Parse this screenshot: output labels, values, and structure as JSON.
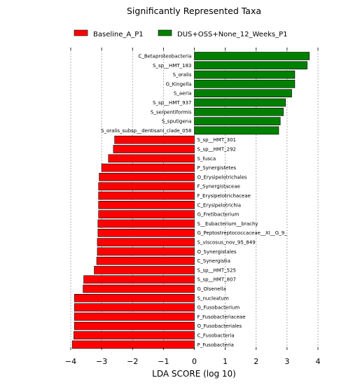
{
  "chart_data": {
    "type": "bar",
    "orientation": "horizontal",
    "title": "Significantly Represented Taxa",
    "xlabel": "LDA SCORE (log 10)",
    "ylabel": "",
    "xlim": [
      -4,
      4
    ],
    "xticks": [
      -4,
      -3,
      -2,
      -1,
      0,
      1,
      2,
      3,
      4
    ],
    "grid": "vertical",
    "legend_position": "top",
    "groups": [
      {
        "name": "Baseline_A_P1",
        "color": "#ff0000"
      },
      {
        "name": "DUS+OSS+None_12_Weeks_P1",
        "color": "#008000"
      }
    ],
    "bars": [
      {
        "label": "C_Betaproteobacteria",
        "value": 3.72,
        "group": 1
      },
      {
        "label": "S_sp__HMT_183",
        "value": 3.65,
        "group": 1
      },
      {
        "label": "S_oralis",
        "value": 3.25,
        "group": 1
      },
      {
        "label": "G_Kingella",
        "value": 3.25,
        "group": 1
      },
      {
        "label": "S_aeria",
        "value": 3.15,
        "group": 1
      },
      {
        "label": "S_sp__HMT_937",
        "value": 2.95,
        "group": 1
      },
      {
        "label": "S_serpentiformis",
        "value": 2.88,
        "group": 1
      },
      {
        "label": "S_sputigena",
        "value": 2.78,
        "group": 1
      },
      {
        "label": "S_oralis_subsp__dentisani_clade_058",
        "value": 2.73,
        "group": 1
      },
      {
        "label": "S_sp__HMT_301",
        "value": -2.58,
        "group": 0
      },
      {
        "label": "S_sp__HMT_292",
        "value": -2.62,
        "group": 0
      },
      {
        "label": "S_fusca",
        "value": -2.78,
        "group": 0
      },
      {
        "label": "P_Synergistetes",
        "value": -3.0,
        "group": 0
      },
      {
        "label": "O_Erysipelotrichales",
        "value": -3.08,
        "group": 0
      },
      {
        "label": "F_Synergistaceae",
        "value": -3.1,
        "group": 0
      },
      {
        "label": "F_Erysipelotrichaceae",
        "value": -3.1,
        "group": 0
      },
      {
        "label": "C_Erysipelotrichia",
        "value": -3.1,
        "group": 0
      },
      {
        "label": "G_Fretibacterium",
        "value": -3.1,
        "group": 0
      },
      {
        "label": "S__Eubacterium__brachy",
        "value": -3.12,
        "group": 0
      },
      {
        "label": "G_Peptostreptococcaceae__XI__G_9_",
        "value": -3.12,
        "group": 0
      },
      {
        "label": "S_viscosus_nov_95_849",
        "value": -3.14,
        "group": 0
      },
      {
        "label": "O_Synergistales",
        "value": -3.14,
        "group": 0
      },
      {
        "label": "C_Synergistia",
        "value": -3.16,
        "group": 0
      },
      {
        "label": "S_sp__HMT_525",
        "value": -3.24,
        "group": 0
      },
      {
        "label": "S_sp__HMT_807",
        "value": -3.58,
        "group": 0
      },
      {
        "label": "G_Olsenella",
        "value": -3.6,
        "group": 0
      },
      {
        "label": "S_nucleatum",
        "value": -3.88,
        "group": 0
      },
      {
        "label": "G_Fusobacterium",
        "value": -3.88,
        "group": 0
      },
      {
        "label": "F_Fusobacteriaceae",
        "value": -3.88,
        "group": 0
      },
      {
        "label": "O_Fusobacteriales",
        "value": -3.88,
        "group": 0
      },
      {
        "label": "C_Fusobacteria",
        "value": -3.9,
        "group": 0
      },
      {
        "label": "P_Fusobacteria",
        "value": -3.95,
        "group": 0
      }
    ]
  }
}
